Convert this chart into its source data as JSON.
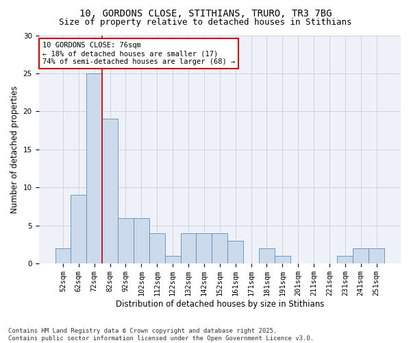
{
  "title_line1": "10, GORDONS CLOSE, STITHIANS, TRURO, TR3 7BG",
  "title_line2": "Size of property relative to detached houses in Stithians",
  "xlabel": "Distribution of detached houses by size in Stithians",
  "ylabel": "Number of detached properties",
  "bar_color": "#ccdaeb",
  "bar_edge_color": "#5b8db8",
  "categories": [
    "52sqm",
    "62sqm",
    "72sqm",
    "82sqm",
    "92sqm",
    "102sqm",
    "112sqm",
    "122sqm",
    "132sqm",
    "142sqm",
    "152sqm",
    "161sqm",
    "171sqm",
    "181sqm",
    "191sqm",
    "201sqm",
    "211sqm",
    "221sqm",
    "231sqm",
    "241sqm",
    "251sqm"
  ],
  "values": [
    2,
    9,
    25,
    19,
    6,
    6,
    4,
    1,
    4,
    4,
    4,
    3,
    0,
    2,
    1,
    0,
    0,
    0,
    1,
    2,
    2
  ],
  "ylim": [
    0,
    30
  ],
  "yticks": [
    0,
    5,
    10,
    15,
    20,
    25,
    30
  ],
  "annotation_line1": "10 GORDONS CLOSE: 76sqm",
  "annotation_line2": "← 18% of detached houses are smaller (17)",
  "annotation_line3": "74% of semi-detached houses are larger (68) →",
  "vline_color": "#cc0000",
  "annotation_box_facecolor": "#ffffff",
  "annotation_box_edgecolor": "#cc0000",
  "footer_line1": "Contains HM Land Registry data © Crown copyright and database right 2025.",
  "footer_line2": "Contains public sector information licensed under the Open Government Licence v3.0.",
  "bg_color": "#ffffff",
  "plot_bg_color": "#eef2f8",
  "title_fontsize": 10,
  "subtitle_fontsize": 9,
  "axis_label_fontsize": 8.5,
  "tick_fontsize": 7.5,
  "annotation_fontsize": 7.5,
  "footer_fontsize": 6.5
}
